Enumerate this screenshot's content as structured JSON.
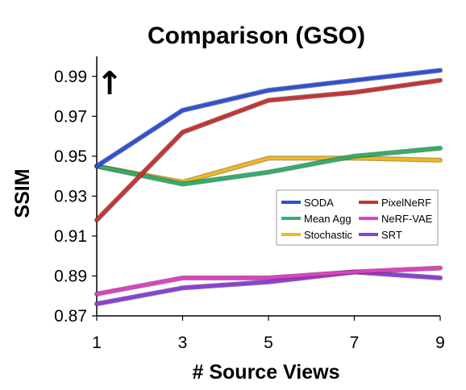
{
  "chart_data": {
    "type": "line",
    "title": "Comparison (GSO)",
    "xlabel": "# Source Views",
    "ylabel": "SSIM",
    "x": [
      1,
      3,
      5,
      7,
      9
    ],
    "x_ticks": [
      "1",
      "3",
      "5",
      "7",
      "9"
    ],
    "y_ticks": [
      "0.87",
      "0.89",
      "0.91",
      "0.93",
      "0.95",
      "0.97",
      "0.99"
    ],
    "y_tick_values": [
      0.87,
      0.89,
      0.91,
      0.93,
      0.95,
      0.97,
      0.99
    ],
    "xlim": [
      1,
      9
    ],
    "ylim": [
      0.87,
      1.0
    ],
    "grid": false,
    "legend_position": "center-right",
    "arrow": "↑",
    "series": [
      {
        "name": "SODA",
        "color": "#2e4fd8",
        "values": [
          0.945,
          0.973,
          0.983,
          0.988,
          0.993
        ]
      },
      {
        "name": "PixelNeRF",
        "color": "#c83232",
        "values": [
          0.918,
          0.962,
          0.978,
          0.982,
          0.988
        ]
      },
      {
        "name": "Mean Agg",
        "color": "#2fb06a",
        "values": [
          0.945,
          0.936,
          0.942,
          0.95,
          0.954
        ]
      },
      {
        "name": "NeRF-VAE",
        "color": "#e040c0",
        "values": [
          0.881,
          0.889,
          0.889,
          0.892,
          0.894
        ]
      },
      {
        "name": "Stochastic",
        "color": "#f0b820",
        "values": [
          0.945,
          0.937,
          0.949,
          0.949,
          0.948
        ]
      },
      {
        "name": "SRT",
        "color": "#8a3fd8",
        "values": [
          0.876,
          0.884,
          0.887,
          0.892,
          0.889
        ]
      }
    ]
  }
}
